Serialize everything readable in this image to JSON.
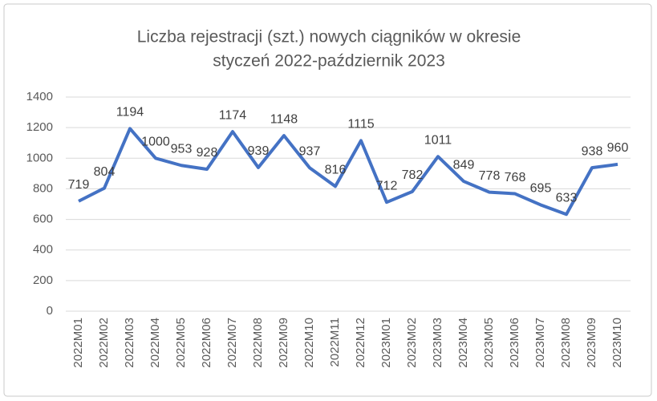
{
  "chart_data": {
    "type": "line",
    "title": [
      "Liczba rejestracji (szt.) nowych ciągników w okresie",
      "styczeń 2022-październik 2023"
    ],
    "categories": [
      "2022M01",
      "2022M02",
      "2022M03",
      "2022M04",
      "2022M05",
      "2022M06",
      "2022M07",
      "2022M08",
      "2022M09",
      "2022M10",
      "2022M11",
      "2022M12",
      "2023M01",
      "2023M02",
      "2023M03",
      "2023M04",
      "2023M05",
      "2023M06",
      "2023M07",
      "2023M08",
      "2023M09",
      "2023M10"
    ],
    "values": [
      719,
      804,
      1194,
      1000,
      953,
      928,
      1174,
      939,
      1148,
      937,
      816,
      1115,
      712,
      782,
      1011,
      849,
      778,
      768,
      695,
      633,
      938,
      960
    ],
    "color": "#4472c4",
    "ylim": [
      0,
      1400
    ],
    "yticks": [
      0,
      200,
      400,
      600,
      800,
      1000,
      1200,
      1400
    ],
    "grid": true
  }
}
